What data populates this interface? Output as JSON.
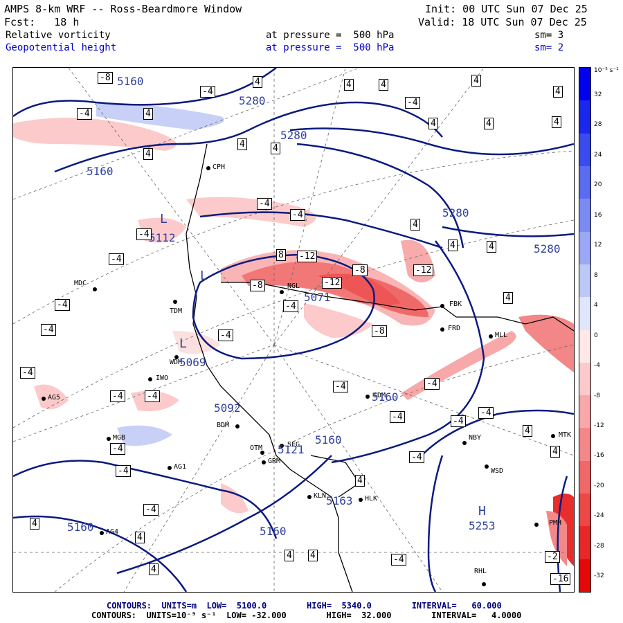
{
  "header": {
    "title": "AMPS 8-km WRF -- Ross-Beardmore Window",
    "init": "Init: 00 UTC Sun 07 Dec 25",
    "forecast": "Fcst:   18 h",
    "valid": "Valid: 18 UTC Sun 07 Dec 25",
    "field1": {
      "name": "Relative vorticity",
      "level": "at pressure =  500 hPa",
      "smooth": "sm= 3"
    },
    "field2": {
      "name": "Geopotential height",
      "level": "at pressure =  500 hPa",
      "smooth": "sm= 2"
    }
  },
  "colorbar": {
    "unit": "10⁻⁵ s⁻¹",
    "ticks": [
      "32",
      "28",
      "24",
      "20",
      "16",
      "12",
      "8",
      "4",
      "0",
      "-4",
      "-8",
      "-12",
      "-16",
      "-20",
      "-24",
      "-28",
      "-32"
    ],
    "colors": [
      "#0000ee",
      "#1a28ee",
      "#3a4cf0",
      "#5a6cf2",
      "#7a8cf4",
      "#9aa8f6",
      "#bcc8f8",
      "#e0e6fc",
      "#ffe8e8",
      "#fccaca",
      "#f8a8a8",
      "#f48888",
      "#f06868",
      "#ec4848",
      "#e82828",
      "#e40808"
    ]
  },
  "stations": [
    "CPH",
    "MDC",
    "TDM",
    "WDM",
    "IWO",
    "AG5",
    "MGB",
    "AG1",
    "AG4",
    "BDM",
    "NGL",
    "SDM",
    "OTM",
    "SFG",
    "GRM",
    "KLN",
    "HLK",
    "FRD",
    "MLL",
    "NBY",
    "WSD",
    "MTK",
    "PMH",
    "RHL",
    "FBK"
  ],
  "height_labels": [
    "5160",
    "5280",
    "5160",
    "5280",
    "5280",
    "5280",
    "5160",
    "5092",
    "5160",
    "5121",
    "5163",
    "5253",
    "5160",
    "5160",
    "5069",
    "5071",
    "5112"
  ],
  "vort_labels": [
    "-8",
    "-4",
    "4",
    "-12",
    "8",
    "-16",
    "-2"
  ],
  "symbols": [
    "L",
    "L",
    "L",
    "H"
  ],
  "footer": {
    "line1": "CONTOURS:  UNITS=m  LOW=  5100.0        HIGH=  5340.0        INTERVAL=   60.000",
    "line2": "CONTOURS:  UNITS=10⁻⁵ s⁻¹  LOW= -32.000        HIGH=  32.000        INTERVAL=   4.0000"
  }
}
